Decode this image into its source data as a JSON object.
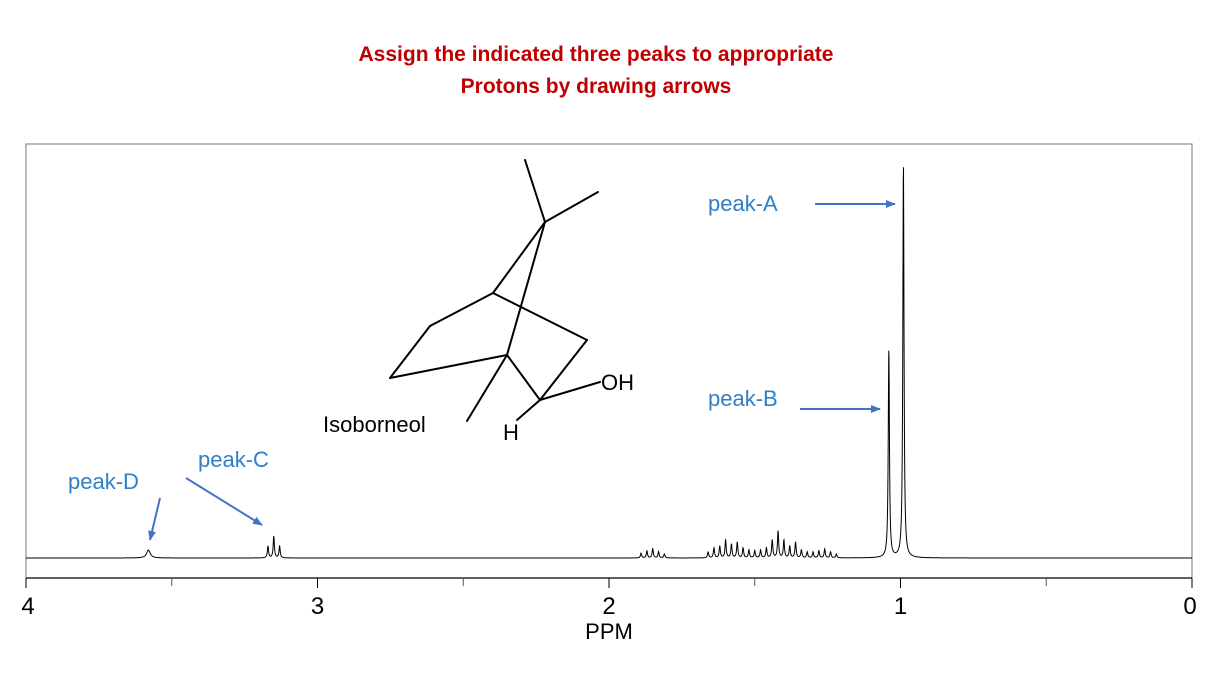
{
  "title_line1": "Assign the indicated three peaks to appropriate",
  "title_line2": "Protons by drawing arrows",
  "molecule": {
    "name": "Isoborneol",
    "oh_label": "OH",
    "h_label": "H"
  },
  "colors": {
    "title": "#c00000",
    "annotation": "#2f7fc8",
    "arrow": "#4472c4",
    "spectrum": "#000000"
  },
  "chart_data": {
    "type": "line",
    "title": "",
    "xlabel": "PPM",
    "ylabel": "",
    "xlim": [
      4,
      0
    ],
    "x_reversed": true,
    "ticks": [
      {
        "value": 4,
        "label": "4"
      },
      {
        "value": 3,
        "label": "3"
      },
      {
        "value": 2,
        "label": "2"
      },
      {
        "value": 1,
        "label": "1"
      },
      {
        "value": 0,
        "label": "0"
      }
    ],
    "minor_ticks": [
      3.5,
      2.5,
      1.5,
      0.5
    ],
    "peaks": [
      {
        "ppm": 0.99,
        "height": 1.0
      },
      {
        "ppm": 1.04,
        "height": 0.53
      },
      {
        "ppm": 3.58,
        "height": 0.02
      },
      {
        "ppm": 3.17,
        "height": 0.03
      },
      {
        "ppm": 3.15,
        "height": 0.055
      },
      {
        "ppm": 3.13,
        "height": 0.03
      },
      {
        "ppm": 1.89,
        "height": 0.012
      },
      {
        "ppm": 1.87,
        "height": 0.018
      },
      {
        "ppm": 1.85,
        "height": 0.024
      },
      {
        "ppm": 1.83,
        "height": 0.016
      },
      {
        "ppm": 1.81,
        "height": 0.01
      },
      {
        "ppm": 1.66,
        "height": 0.015
      },
      {
        "ppm": 1.64,
        "height": 0.025
      },
      {
        "ppm": 1.62,
        "height": 0.03
      },
      {
        "ppm": 1.6,
        "height": 0.045
      },
      {
        "ppm": 1.58,
        "height": 0.035
      },
      {
        "ppm": 1.56,
        "height": 0.04
      },
      {
        "ppm": 1.54,
        "height": 0.025
      },
      {
        "ppm": 1.52,
        "height": 0.02
      },
      {
        "ppm": 1.5,
        "height": 0.018
      },
      {
        "ppm": 1.48,
        "height": 0.02
      },
      {
        "ppm": 1.46,
        "height": 0.025
      },
      {
        "ppm": 1.44,
        "height": 0.045
      },
      {
        "ppm": 1.42,
        "height": 0.068
      },
      {
        "ppm": 1.4,
        "height": 0.045
      },
      {
        "ppm": 1.38,
        "height": 0.03
      },
      {
        "ppm": 1.36,
        "height": 0.04
      },
      {
        "ppm": 1.34,
        "height": 0.02
      },
      {
        "ppm": 1.32,
        "height": 0.015
      },
      {
        "ppm": 1.3,
        "height": 0.015
      },
      {
        "ppm": 1.28,
        "height": 0.018
      },
      {
        "ppm": 1.26,
        "height": 0.022
      },
      {
        "ppm": 1.24,
        "height": 0.015
      },
      {
        "ppm": 1.22,
        "height": 0.01
      }
    ],
    "annotations": [
      {
        "label": "peak-A",
        "target_ppm": 0.99
      },
      {
        "label": "peak-B",
        "target_ppm": 1.04
      },
      {
        "label": "peak-C",
        "target_ppm": 3.15
      },
      {
        "label": "peak-D",
        "target_ppm": 3.58
      }
    ]
  }
}
